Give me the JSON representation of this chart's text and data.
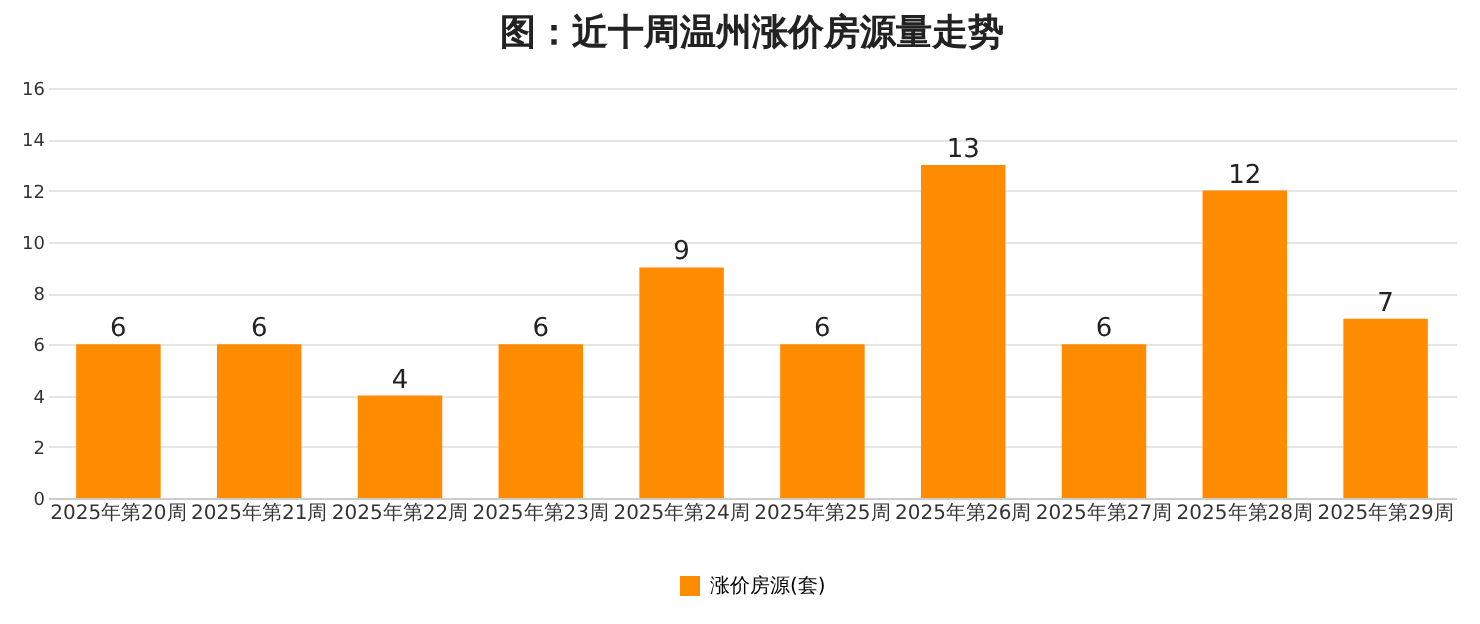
{
  "chart_data": {
    "type": "bar",
    "title": "图：近十周温州涨价房源量走势",
    "categories": [
      "2025年第20周",
      "2025年第21周",
      "2025年第22周",
      "2025年第23周",
      "2025年第24周",
      "2025年第25周",
      "2025年第26周",
      "2025年第27周",
      "2025年第28周",
      "2025年第29周"
    ],
    "series": [
      {
        "name": "涨价房源(套)",
        "color": "#ff8c00",
        "values": [
          6,
          6,
          4,
          6,
          9,
          6,
          13,
          6,
          12,
          7
        ]
      }
    ],
    "ylim": [
      0,
      16
    ],
    "yticks": [
      0,
      2,
      4,
      6,
      8,
      10,
      12,
      14,
      16
    ],
    "grid": "y",
    "data_labels": true,
    "legend": "bottom"
  }
}
